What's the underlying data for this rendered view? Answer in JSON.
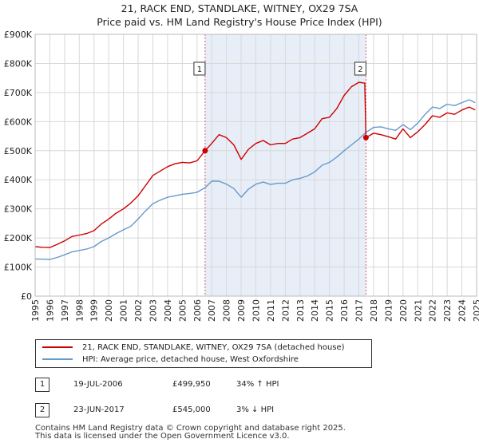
{
  "chart_data": {
    "type": "line",
    "title": "21, RACK END, STANDLAKE, WITNEY, OX29 7SA",
    "subtitle": "Price paid vs. HM Land Registry's House Price Index (HPI)",
    "xlabel": "",
    "ylabel": "",
    "xlim": [
      1995,
      2025
    ],
    "ylim": [
      0,
      900000
    ],
    "x_ticks": [
      "1995",
      "1996",
      "1997",
      "1998",
      "1999",
      "2000",
      "2001",
      "2002",
      "2003",
      "2004",
      "2005",
      "2006",
      "2007",
      "2008",
      "2009",
      "2010",
      "2011",
      "2012",
      "2013",
      "2014",
      "2015",
      "2016",
      "2017",
      "2018",
      "2019",
      "2020",
      "2021",
      "2022",
      "2023",
      "2024",
      "2025"
    ],
    "y_ticks": [
      {
        "value": 0,
        "label": "£0"
      },
      {
        "value": 100000,
        "label": "£100K"
      },
      {
        "value": 200000,
        "label": "£200K"
      },
      {
        "value": 300000,
        "label": "£300K"
      },
      {
        "value": 400000,
        "label": "£400K"
      },
      {
        "value": 500000,
        "label": "£500K"
      },
      {
        "value": 600000,
        "label": "£600K"
      },
      {
        "value": 700000,
        "label": "£700K"
      },
      {
        "value": 800000,
        "label": "£800K"
      },
      {
        "value": 900000,
        "label": "£900K"
      }
    ],
    "grid": true,
    "shaded_span": [
      2006.55,
      2017.48
    ],
    "series": [
      {
        "name": "21, RACK END, STANDLAKE, WITNEY, OX29 7SA (detached house)",
        "color": "#cc0000",
        "x": [
          1995.0,
          1995.5,
          1996.0,
          1996.5,
          1997.0,
          1997.5,
          1998.0,
          1998.5,
          1999.0,
          1999.5,
          2000.0,
          2000.5,
          2001.0,
          2001.5,
          2002.0,
          2002.5,
          2003.0,
          2003.5,
          2004.0,
          2004.5,
          2005.0,
          2005.5,
          2006.0,
          2006.55,
          2007.0,
          2007.5,
          2008.0,
          2008.5,
          2009.0,
          2009.5,
          2010.0,
          2010.5,
          2011.0,
          2011.5,
          2012.0,
          2012.5,
          2013.0,
          2013.5,
          2014.0,
          2014.5,
          2015.0,
          2015.5,
          2016.0,
          2016.5,
          2017.0,
          2017.4,
          2017.48,
          2018.0,
          2018.5,
          2019.0,
          2019.5,
          2020.0,
          2020.5,
          2021.0,
          2021.5,
          2022.0,
          2022.5,
          2023.0,
          2023.5,
          2024.0,
          2024.5,
          2024.9
        ],
        "y": [
          170000,
          168000,
          167000,
          178000,
          190000,
          205000,
          210000,
          215000,
          225000,
          248000,
          265000,
          285000,
          300000,
          320000,
          345000,
          380000,
          415000,
          430000,
          445000,
          455000,
          460000,
          458000,
          465000,
          499950,
          525000,
          555000,
          545000,
          520000,
          470000,
          505000,
          525000,
          535000,
          520000,
          525000,
          525000,
          540000,
          545000,
          560000,
          575000,
          610000,
          615000,
          645000,
          690000,
          720000,
          735000,
          732000,
          545000,
          560000,
          555000,
          548000,
          540000,
          575000,
          545000,
          565000,
          590000,
          620000,
          615000,
          630000,
          625000,
          640000,
          650000,
          640000
        ]
      },
      {
        "name": "HPI: Average price, detached house, West Oxfordshire",
        "color": "#6699cc",
        "x": [
          1995.0,
          1995.5,
          1996.0,
          1996.5,
          1997.0,
          1997.5,
          1998.0,
          1998.5,
          1999.0,
          1999.5,
          2000.0,
          2000.5,
          2001.0,
          2001.5,
          2002.0,
          2002.5,
          2003.0,
          2003.5,
          2004.0,
          2004.5,
          2005.0,
          2005.5,
          2006.0,
          2006.55,
          2007.0,
          2007.5,
          2008.0,
          2008.5,
          2009.0,
          2009.5,
          2010.0,
          2010.5,
          2011.0,
          2011.5,
          2012.0,
          2012.5,
          2013.0,
          2013.5,
          2014.0,
          2014.5,
          2015.0,
          2015.5,
          2016.0,
          2016.5,
          2017.0,
          2017.48,
          2018.0,
          2018.5,
          2019.0,
          2019.5,
          2020.0,
          2020.5,
          2021.0,
          2021.5,
          2022.0,
          2022.5,
          2023.0,
          2023.5,
          2024.0,
          2024.5,
          2024.9
        ],
        "y": [
          128000,
          127000,
          126000,
          133000,
          142000,
          152000,
          157000,
          162000,
          170000,
          188000,
          200000,
          215000,
          228000,
          240000,
          265000,
          293000,
          318000,
          330000,
          340000,
          345000,
          350000,
          353000,
          357000,
          373000,
          395000,
          395000,
          385000,
          370000,
          340000,
          368000,
          385000,
          392000,
          384000,
          388000,
          388000,
          400000,
          405000,
          413000,
          427000,
          450000,
          460000,
          478000,
          500000,
          520000,
          540000,
          563000,
          580000,
          582000,
          575000,
          570000,
          590000,
          572000,
          595000,
          625000,
          650000,
          645000,
          660000,
          655000,
          665000,
          675000,
          665000
        ]
      }
    ],
    "annotations": [
      {
        "label": "1",
        "x": 2006.55,
        "y": 499950
      },
      {
        "label": "2",
        "x": 2017.48,
        "y": 545000
      }
    ]
  },
  "legend": {
    "property": "21, RACK END, STANDLAKE, WITNEY, OX29 7SA (detached house)",
    "hpi": "HPI: Average price, detached house, West Oxfordshire"
  },
  "sales": [
    {
      "badge": "1",
      "date": "19-JUL-2006",
      "price": "£499,950",
      "hpi": "34% ↑ HPI"
    },
    {
      "badge": "2",
      "date": "23-JUN-2017",
      "price": "£545,000",
      "hpi": "3% ↓ HPI"
    }
  ],
  "footer": {
    "line1": "Contains HM Land Registry data © Crown copyright and database right 2025.",
    "line2": "This data is licensed under the Open Government Licence v3.0."
  },
  "colors": {
    "property": "#cc0000",
    "hpi": "#6699cc",
    "shade": "#e8eef8",
    "grid": "#d8d8d8"
  }
}
